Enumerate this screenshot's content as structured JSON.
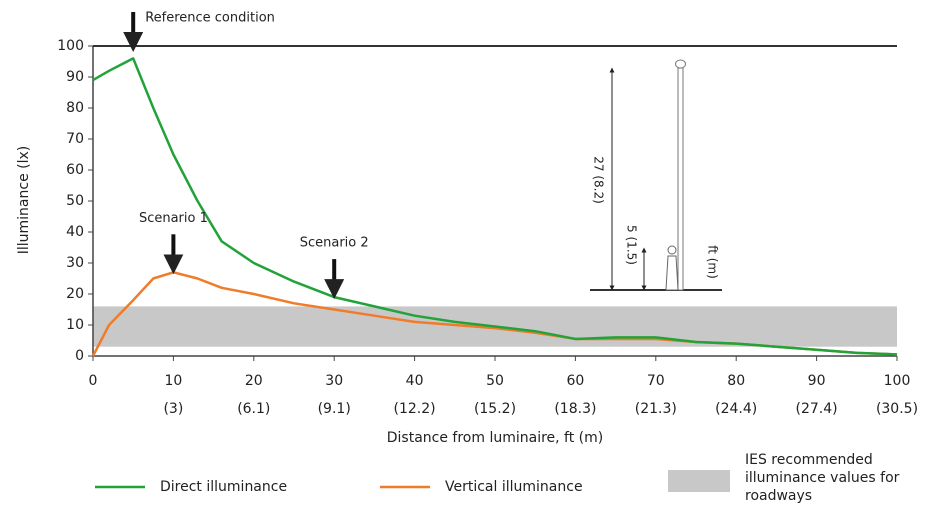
{
  "chart_data": {
    "type": "line",
    "x_label": "Distance from luminaire, ft (m)",
    "y_label": "Illuminance (lx)",
    "x": [
      0,
      2,
      5,
      7.5,
      10,
      13,
      16,
      20,
      25,
      30,
      35,
      40,
      45,
      50,
      55,
      60,
      65,
      70,
      75,
      80,
      85,
      90,
      95,
      100
    ],
    "series": [
      {
        "name": "Direct illuminance",
        "color": "#22a33a",
        "values": [
          89,
          92,
          96,
          80,
          65,
          50,
          37,
          30,
          24,
          19,
          16,
          13,
          11,
          9.5,
          8,
          5.5,
          6,
          6,
          4.5,
          4,
          3,
          2,
          1,
          0.5
        ]
      },
      {
        "name": "Vertical illuminance",
        "color": "#f07c2a",
        "values": [
          0,
          10,
          18,
          25,
          27,
          25,
          22,
          20,
          17,
          15,
          13,
          11,
          10,
          9,
          7.5,
          5.5,
          5.5,
          5.5,
          4.5,
          4,
          3,
          2,
          1,
          0.5
        ]
      }
    ],
    "band": {
      "name": "IES recommended illuminance values for roadways",
      "color": "#c8c8c8",
      "range": [
        3,
        16
      ]
    },
    "xlim": [
      0,
      100
    ],
    "xticks": [
      0,
      10,
      20,
      30,
      40,
      50,
      60,
      70,
      80,
      90,
      100
    ],
    "xtick_metric": [
      "(3)",
      "(6.1)",
      "(9.1)",
      "(12.2)",
      "(15.2)",
      "(18.3)",
      "(21.3)",
      "(24.4)",
      "(27.4)",
      "(30.5)"
    ],
    "ylim": [
      0,
      100
    ],
    "yticks": [
      0,
      10,
      20,
      30,
      40,
      50,
      60,
      70,
      80,
      90,
      100
    ],
    "annotations": [
      {
        "text": "Reference condition",
        "x": 5
      },
      {
        "text": "Scenario 1",
        "x": 10
      },
      {
        "text": "Scenario 2",
        "x": 30
      }
    ],
    "inset": {
      "pole_height": "27 (8.2)",
      "observer_height": "5 (1.5)",
      "unit": "ft (m)"
    }
  }
}
